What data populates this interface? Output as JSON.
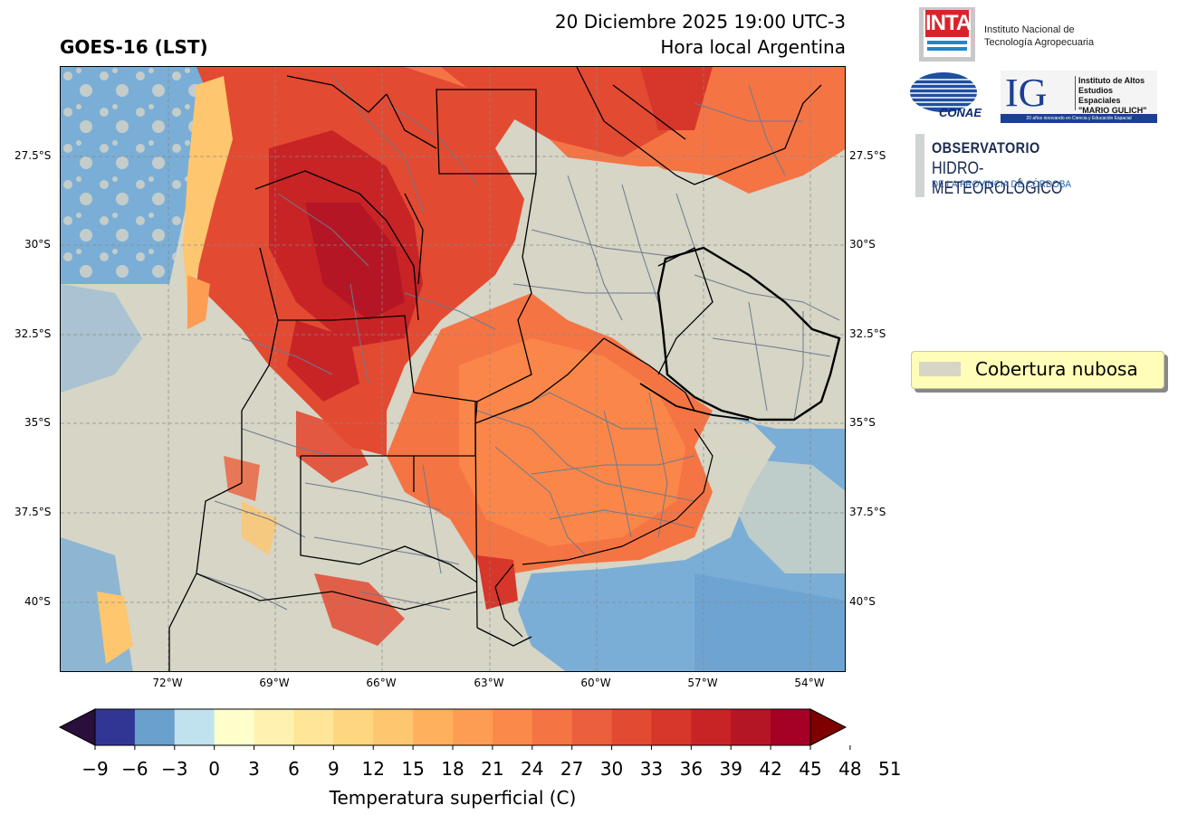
{
  "header": {
    "product_title": "GOES-16 (LST)",
    "date_line": "20 Diciembre 2025 19:00 UTC-3",
    "time_note": "Hora local Argentina"
  },
  "map": {
    "lat_labels": [
      "27.5°S",
      "30°S",
      "32.5°S",
      "35°S",
      "37.5°S",
      "40°S"
    ],
    "lon_labels": [
      "72°W",
      "69°W",
      "66°W",
      "63°W",
      "60°W",
      "57°W",
      "54°W"
    ],
    "gridlines": true,
    "background_color": "#d6d5c6",
    "water_color": "#7aaed6"
  },
  "legend": {
    "label": "Cobertura nubosa",
    "swatch_color": "#d6d5c6"
  },
  "colorbar": {
    "label": "Temperatura superficial (C)",
    "ticks": [
      "−9",
      "−6",
      "−3",
      "0",
      "3",
      "6",
      "9",
      "12",
      "15",
      "18",
      "21",
      "24",
      "27",
      "30",
      "33",
      "36",
      "39",
      "42",
      "45",
      "48",
      "51"
    ],
    "colors": [
      "#313695",
      "#6aa0cc",
      "#bfe2ee",
      "#ffffcc",
      "#fff2b0",
      "#ffe597",
      "#fed67f",
      "#fec66f",
      "#feb05c",
      "#fd9d53",
      "#fb8a4a",
      "#f57444",
      "#ec5f3c",
      "#e34a32",
      "#d7362a",
      "#c82426",
      "#b51625",
      "#a50026"
    ],
    "under_color": "#2a0f3d",
    "over_color": "#7f0000"
  },
  "logos": {
    "inta": {
      "mark": "INTA",
      "caption_1": "Instituto Nacional de",
      "caption_2": "Tecnología Agropecuaria"
    },
    "conae": {
      "mark": "CONAE"
    },
    "ig": {
      "mark": "IG",
      "line_1": "Instituto de Altos",
      "line_2": "Estudios Espaciales",
      "line_3": "\"MARIO GULICH\"",
      "bar": "20 años innovando en Ciencia y Educación Espacial"
    },
    "ohm": {
      "line_1": "OBSERVATORIO",
      "line_2": "HIDRO-METEOROLÓGICO",
      "line_3": "DE LA PROVINCIA DE CÓRDOBA"
    }
  }
}
